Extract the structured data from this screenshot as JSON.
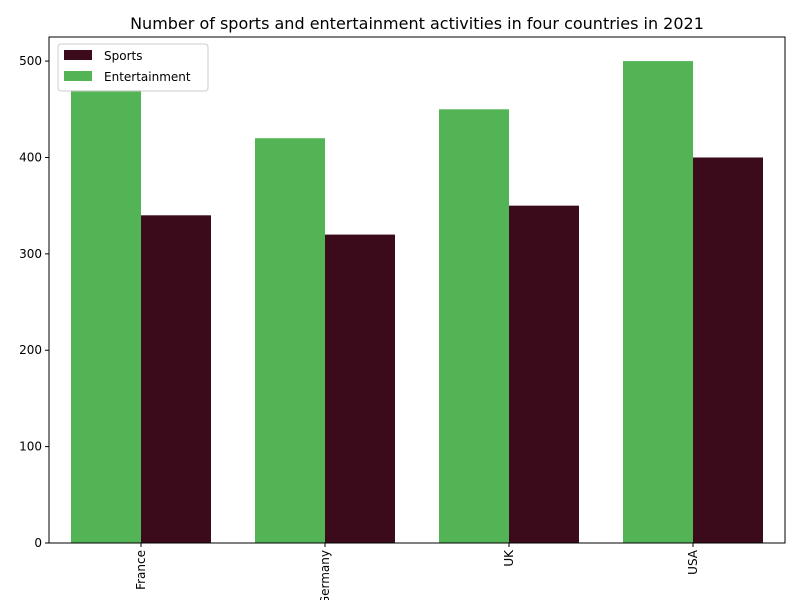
{
  "chart_data": {
    "type": "bar",
    "title": "Number of sports and entertainment activities in four countries in 2021",
    "xlabel": "",
    "ylabel": "",
    "categories": [
      "France",
      "Germany",
      "UK",
      "USA"
    ],
    "series": [
      {
        "name": "Sports",
        "values": [
          340,
          320,
          350,
          400
        ],
        "color": "#3b0b1c"
      },
      {
        "name": "Entertainment",
        "values": [
          470,
          420,
          450,
          500
        ],
        "color": "#53b455"
      }
    ],
    "ylim": [
      0,
      525
    ],
    "yticks": [
      0,
      100,
      200,
      300,
      400,
      500
    ],
    "legend_position": "top-left",
    "grid": false
  }
}
